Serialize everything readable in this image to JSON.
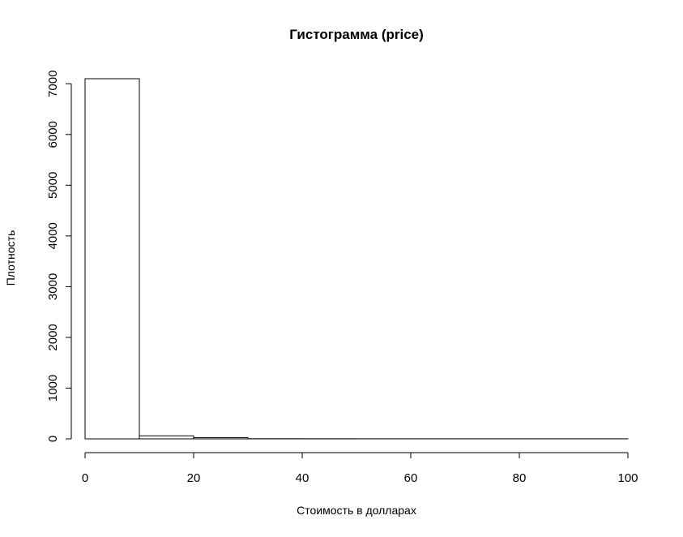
{
  "chart_data": {
    "type": "bar",
    "title": "Гистограмма (price)",
    "xlabel": "Стоимость в долларах",
    "ylabel": "Плотность",
    "bins": [
      {
        "from": 0,
        "to": 10,
        "value": 7100
      },
      {
        "from": 10,
        "to": 20,
        "value": 60
      },
      {
        "from": 20,
        "to": 30,
        "value": 25
      },
      {
        "from": 30,
        "to": 40,
        "value": 3
      },
      {
        "from": 40,
        "to": 50,
        "value": 2
      },
      {
        "from": 50,
        "to": 60,
        "value": 1
      },
      {
        "from": 60,
        "to": 70,
        "value": 1
      },
      {
        "from": 70,
        "to": 80,
        "value": 1
      },
      {
        "from": 80,
        "to": 90,
        "value": 1
      },
      {
        "from": 90,
        "to": 100,
        "value": 1
      }
    ],
    "xlim": [
      0,
      100
    ],
    "ylim": [
      0,
      7100
    ],
    "x_ticks": [
      0,
      20,
      40,
      60,
      80,
      100
    ],
    "y_ticks": [
      0,
      1000,
      2000,
      3000,
      4000,
      5000,
      6000,
      7000
    ],
    "grid": false,
    "colors": {
      "bar_fill": "#ffffff",
      "bar_stroke": "#000000",
      "axis": "#000000"
    }
  }
}
